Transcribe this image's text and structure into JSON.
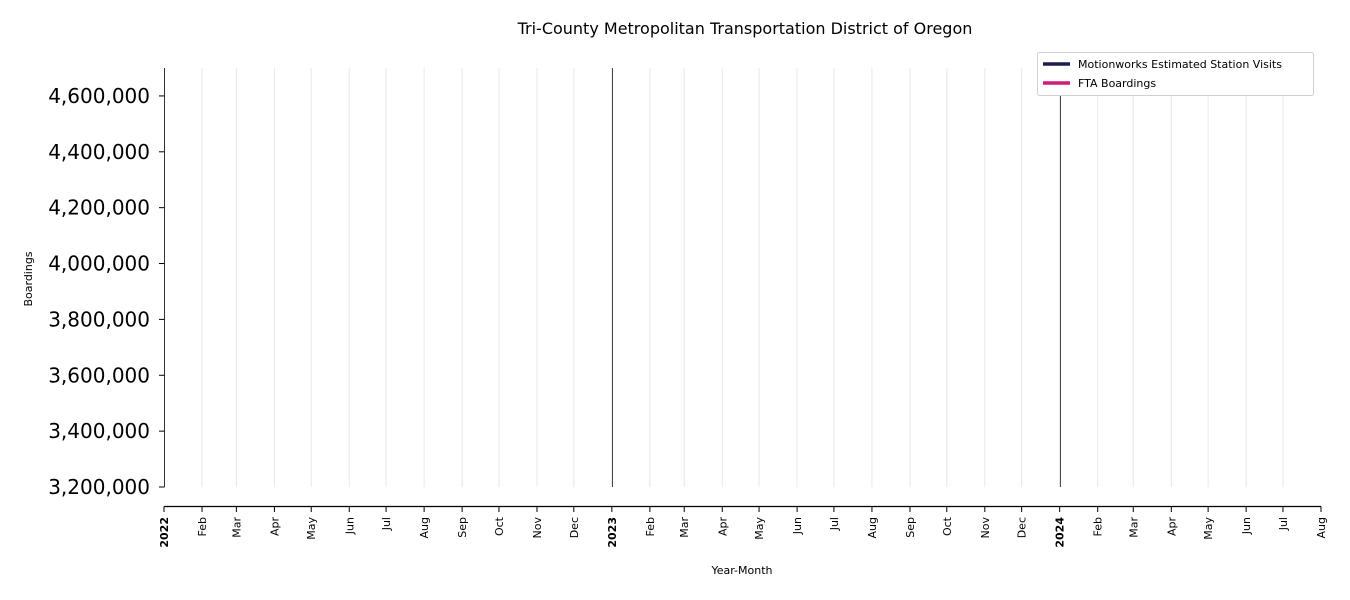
{
  "chart_data": {
    "type": "line",
    "title": "Tri-County Metropolitan Transportation District of Oregon",
    "xlabel": "Year-Month",
    "ylabel": "Boardings",
    "x_range": [
      "2022-01",
      "2024-08"
    ],
    "ylim": [
      3200000,
      4700000
    ],
    "y_ticks": [
      "3,200,000",
      "3,400,000",
      "3,600,000",
      "3,800,000",
      "4,000,000",
      "4,200,000",
      "4,400,000",
      "4,600,000"
    ],
    "y_tick_values": [
      3200000,
      3400000,
      3600000,
      3800000,
      4000000,
      4200000,
      4400000,
      4600000
    ],
    "x_ticks": [
      "2022",
      "Feb",
      "Mar",
      "Apr",
      "May",
      "Jun",
      "Jul",
      "Aug",
      "Sep",
      "Oct",
      "Nov",
      "Dec",
      "2023",
      "Feb",
      "Mar",
      "Apr",
      "May",
      "Jun",
      "Jul",
      "Aug",
      "Sep",
      "Oct",
      "Nov",
      "Dec",
      "2024",
      "Feb",
      "Mar",
      "Apr",
      "May",
      "Jun",
      "Jul",
      "Aug"
    ],
    "x_tick_dates": [
      "2022-01-01",
      "2022-02-01",
      "2022-03-01",
      "2022-04-01",
      "2022-05-01",
      "2022-06-01",
      "2022-07-01",
      "2022-08-01",
      "2022-09-01",
      "2022-10-01",
      "2022-11-01",
      "2022-12-01",
      "2023-01-01",
      "2023-02-01",
      "2023-03-01",
      "2023-04-01",
      "2023-05-01",
      "2023-06-01",
      "2023-07-01",
      "2023-08-01",
      "2023-09-01",
      "2023-10-01",
      "2023-11-01",
      "2023-12-01",
      "2024-01-01",
      "2024-02-01",
      "2024-03-01",
      "2024-04-01",
      "2024-05-01",
      "2024-06-01",
      "2024-07-01",
      "2024-08-01"
    ],
    "year_markers": [
      "2023-01-01",
      "2024-01-01"
    ],
    "grid": "vertical",
    "legend_position": "top-right",
    "series": [
      {
        "name": "Motionworks Estimated Station Visits",
        "color": "#1f1f4f",
        "x": [],
        "values": []
      },
      {
        "name": "FTA Boardings",
        "color": "#d4197c",
        "x": [],
        "values": []
      }
    ]
  }
}
